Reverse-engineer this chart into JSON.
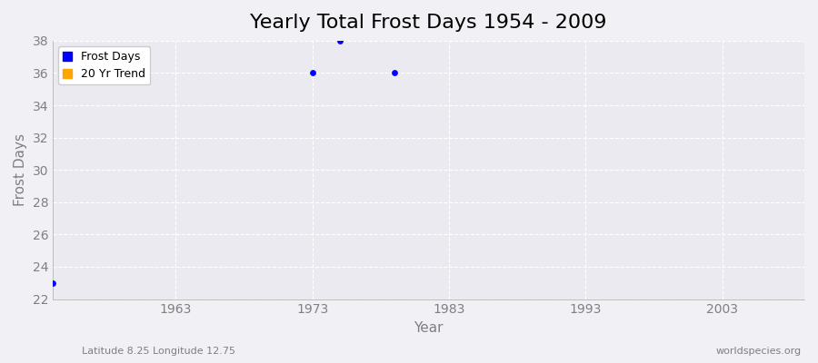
{
  "title": "Yearly Total Frost Days 1954 - 2009",
  "xlabel": "Year",
  "ylabel": "Frost Days",
  "subtitle_left": "Latitude 8.25 Longitude 12.75",
  "subtitle_right": "worldspecies.org",
  "frost_days_years": [
    1954,
    1973,
    1975,
    1979
  ],
  "frost_days_values": [
    23,
    36,
    38,
    36
  ],
  "ylim": [
    22,
    38
  ],
  "xlim": [
    1954,
    2009
  ],
  "xticks": [
    1963,
    1973,
    1983,
    1993,
    2003
  ],
  "yticks": [
    22,
    24,
    26,
    28,
    30,
    32,
    34,
    36,
    38
  ],
  "point_color": "#0000FF",
  "trend_color": "#FFA500",
  "bg_color": "#EAEAF0",
  "grid_color": "#FFFFFF",
  "fig_bg": "#F0F0F5",
  "title_fontsize": 16,
  "label_fontsize": 11,
  "tick_fontsize": 10
}
